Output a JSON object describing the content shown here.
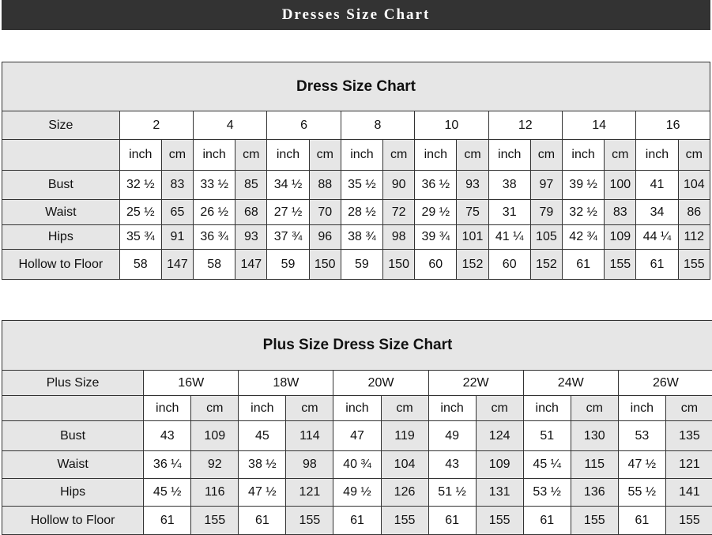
{
  "header": {
    "title": "Dresses Size Chart"
  },
  "colors": {
    "header_bg": "#333333",
    "shaded_cell": "#e6e6e6",
    "border": "#333333"
  },
  "tables": [
    {
      "title": "Dress Size Chart",
      "size_label": "Size",
      "sizes": [
        "2",
        "4",
        "6",
        "8",
        "10",
        "12",
        "14",
        "16"
      ],
      "units": [
        "inch",
        "cm"
      ],
      "rows": [
        {
          "label": "Bust",
          "values": [
            "32 ½",
            "83",
            "33 ½",
            "85",
            "34 ½",
            "88",
            "35 ½",
            "90",
            "36 ½",
            "93",
            "38",
            "97",
            "39 ½",
            "100",
            "41",
            "104"
          ]
        },
        {
          "label": "Waist",
          "values": [
            "25 ½",
            "65",
            "26 ½",
            "68",
            "27 ½",
            "70",
            "28 ½",
            "72",
            "29 ½",
            "75",
            "31",
            "79",
            "32 ½",
            "83",
            "34",
            "86"
          ]
        },
        {
          "label": "Hips",
          "values": [
            "35 ¾",
            "91",
            "36 ¾",
            "93",
            "37 ¾",
            "96",
            "38 ¾",
            "98",
            "39 ¾",
            "101",
            "41 ¼",
            "105",
            "42 ¾",
            "109",
            "44 ¼",
            "112"
          ]
        },
        {
          "label": "Hollow to Floor",
          "values": [
            "58",
            "147",
            "58",
            "147",
            "59",
            "150",
            "59",
            "150",
            "60",
            "152",
            "60",
            "152",
            "61",
            "155",
            "61",
            "155"
          ]
        }
      ]
    },
    {
      "title": "Plus Size Dress Size Chart",
      "size_label": "Plus Size",
      "sizes": [
        "16W",
        "18W",
        "20W",
        "22W",
        "24W",
        "26W"
      ],
      "units": [
        "inch",
        "cm"
      ],
      "rows": [
        {
          "label": "Bust",
          "values": [
            "43",
            "109",
            "45",
            "114",
            "47",
            "119",
            "49",
            "124",
            "51",
            "130",
            "53",
            "135"
          ]
        },
        {
          "label": "Waist",
          "values": [
            "36 ¼",
            "92",
            "38 ½",
            "98",
            "40 ¾",
            "104",
            "43",
            "109",
            "45 ¼",
            "115",
            "47 ½",
            "121"
          ]
        },
        {
          "label": "Hips",
          "values": [
            "45 ½",
            "116",
            "47 ½",
            "121",
            "49 ½",
            "126",
            "51 ½",
            "131",
            "53 ½",
            "136",
            "55 ½",
            "141"
          ]
        },
        {
          "label": "Hollow to Floor",
          "values": [
            "61",
            "155",
            "61",
            "155",
            "61",
            "155",
            "61",
            "155",
            "61",
            "155",
            "61",
            "155"
          ]
        }
      ]
    }
  ]
}
